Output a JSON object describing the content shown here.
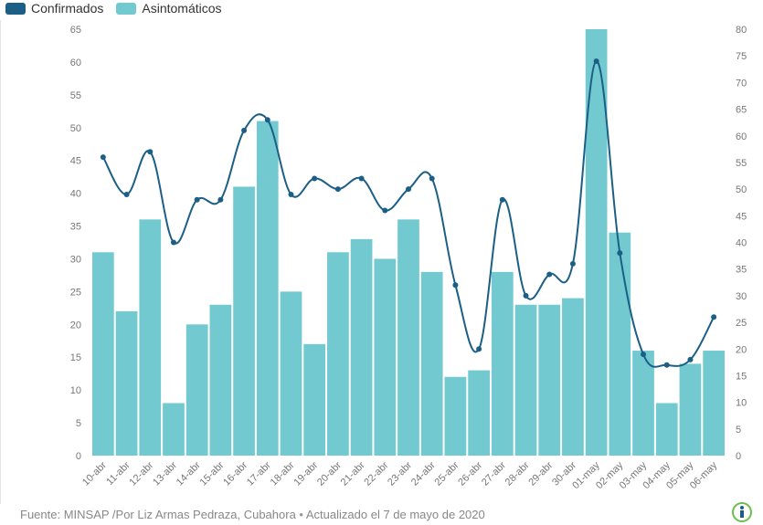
{
  "legend": {
    "confirmados": {
      "label": "Confirmados",
      "color": "#1c5f86"
    },
    "asintomaticos": {
      "label": "Asintomáticos",
      "color": "#72c9d0"
    }
  },
  "footer": {
    "source": "Fuente: MINSAP /Por Liz Armas Pedraza, Cubahora",
    "separator": "•",
    "updated": "Actualizado el 7 de mayo de 2020"
  },
  "chart_data": {
    "type": "bar",
    "categories": [
      "10-abr",
      "11-abr",
      "12-abr",
      "13-abr",
      "14-abr",
      "15-abr",
      "16-abr",
      "17-abr",
      "18-abr",
      "19-abr",
      "20-abr",
      "21-abr",
      "22-abr",
      "23-abr",
      "24-abr",
      "25-abr",
      "26-abr",
      "27-abr",
      "28-abr",
      "29-abr",
      "30-abr",
      "01-may",
      "02-may",
      "03-may",
      "04-may",
      "05-may",
      "06-may"
    ],
    "series": [
      {
        "name": "Confirmados",
        "type": "line",
        "axis": "right",
        "color": "#1c5f86",
        "values": [
          56,
          49,
          57,
          40,
          48,
          48,
          61,
          63,
          49,
          52,
          50,
          52,
          46,
          50,
          52,
          32,
          20,
          48,
          30,
          34,
          36,
          74,
          38,
          19,
          17,
          18,
          26
        ]
      },
      {
        "name": "Asintomáticos",
        "type": "bar",
        "axis": "left",
        "color": "#72c9d0",
        "values": [
          31,
          22,
          36,
          8,
          20,
          23,
          41,
          51,
          25,
          17,
          31,
          33,
          30,
          36,
          28,
          12,
          13,
          28,
          23,
          23,
          24,
          65,
          34,
          16,
          8,
          14,
          16
        ]
      }
    ],
    "left_axis": {
      "ticks": [
        0,
        5,
        10,
        15,
        20,
        25,
        30,
        35,
        40,
        45,
        50,
        55,
        60,
        65
      ],
      "range": [
        0,
        65
      ]
    },
    "right_axis": {
      "ticks": [
        0,
        5,
        10,
        15,
        20,
        25,
        30,
        35,
        40,
        45,
        50,
        55,
        60,
        65,
        70,
        75,
        80
      ],
      "range": [
        0,
        80
      ]
    },
    "grid": false,
    "legend_position": "top-left"
  }
}
